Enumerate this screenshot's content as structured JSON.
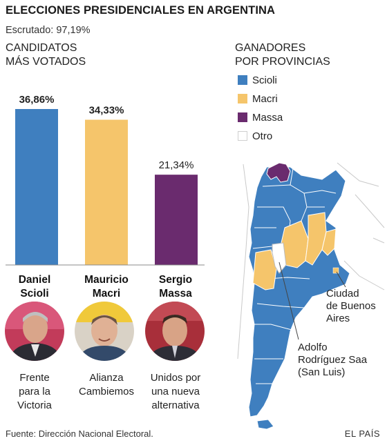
{
  "title": "ELECCIONES PRESIDENCIALES EN ARGENTINA",
  "scrutiny": "Escrutado: 97,19%",
  "candidates_heading": [
    "CANDIDATOS",
    "MÁS VOTADOS"
  ],
  "provinces_heading": [
    "GANADORES",
    "POR PROVINCIAS"
  ],
  "legend": [
    {
      "label": "Scioli",
      "color": "#3f7fbf"
    },
    {
      "label": "Macri",
      "color": "#f5c56b"
    },
    {
      "label": "Massa",
      "color": "#6a2b6e"
    },
    {
      "label": "Otro",
      "color": "#ffffff"
    }
  ],
  "chart_data": {
    "type": "bar",
    "categories": [
      "Daniel Scioli",
      "Mauricio Macri",
      "Sergio Massa"
    ],
    "values": [
      36.86,
      34.33,
      21.34
    ],
    "value_labels": [
      "36,86%",
      "34,33%",
      "21,34%"
    ],
    "colors": [
      "#3f7fbf",
      "#f5c56b",
      "#6a2b6e"
    ],
    "title": "CANDIDATOS MÁS VOTADOS",
    "ylim": [
      0,
      40
    ]
  },
  "candidates": [
    {
      "first": "Daniel",
      "last": "Scioli",
      "party": [
        "Frente",
        "para la",
        "Victoria"
      ]
    },
    {
      "first": "Mauricio",
      "last": "Macri",
      "party": [
        "Alianza",
        "Cambiemos"
      ]
    },
    {
      "first": "Sergio",
      "last": "Massa",
      "party": [
        "Unidos por",
        "una nueva",
        "alternativa"
      ]
    }
  ],
  "callouts": {
    "caba": [
      "Ciudad",
      "de Buenos",
      "Aires"
    ],
    "sanluis": [
      "Adolfo",
      "Rodríguez Saa",
      "(San Luis)"
    ]
  },
  "footer": "Fuente: Dirección Nacional Electoral.",
  "brand": "EL PAÍS"
}
